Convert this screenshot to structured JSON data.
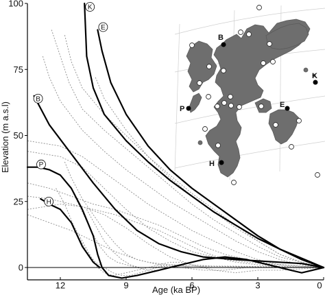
{
  "chart_data": {
    "type": "line",
    "xlabel": "Age (ka BP)",
    "ylabel": "Elevation (m a.s.l)",
    "xlim": [
      13.5,
      0
    ],
    "ylim": [
      -10,
      100
    ],
    "x_ticks": [
      12,
      9,
      6,
      3,
      0
    ],
    "y_ticks": [
      0,
      25,
      50,
      75,
      100
    ],
    "grid": false,
    "series": [
      {
        "name": "K",
        "highlight": true,
        "points": [
          [
            10.9,
            100
          ],
          [
            10.8,
            80
          ],
          [
            10.5,
            68
          ],
          [
            10,
            58
          ],
          [
            9,
            48
          ],
          [
            8,
            40
          ],
          [
            7,
            33
          ],
          [
            6,
            27
          ],
          [
            5,
            21
          ],
          [
            4,
            16
          ],
          [
            3,
            11
          ],
          [
            2,
            7
          ],
          [
            1,
            3.5
          ],
          [
            0,
            0
          ]
        ]
      },
      {
        "name": "E",
        "highlight": true,
        "points": [
          [
            10.3,
            90
          ],
          [
            10.1,
            82
          ],
          [
            9.7,
            70
          ],
          [
            9,
            58
          ],
          [
            8,
            46
          ],
          [
            7,
            37
          ],
          [
            6,
            30
          ],
          [
            5,
            24
          ],
          [
            4,
            18
          ],
          [
            3,
            12
          ],
          [
            2,
            7
          ],
          [
            1,
            3
          ],
          [
            0,
            0
          ]
        ]
      },
      {
        "name": "B",
        "highlight": true,
        "points": [
          [
            13.2,
            65
          ],
          [
            12.5,
            54
          ],
          [
            11.5,
            43
          ],
          [
            10.5,
            32
          ],
          [
            9.5,
            22
          ],
          [
            8.5,
            14
          ],
          [
            7.5,
            9
          ],
          [
            6.5,
            6
          ],
          [
            5.5,
            4
          ],
          [
            4,
            3
          ],
          [
            3,
            2.5
          ],
          [
            2,
            2
          ],
          [
            1,
            1.5
          ],
          [
            0,
            0
          ]
        ]
      },
      {
        "name": "P",
        "highlight": true,
        "points": [
          [
            13.5,
            38
          ],
          [
            13,
            38
          ],
          [
            12.5,
            37
          ],
          [
            12,
            35
          ],
          [
            11.5,
            30
          ],
          [
            11,
            22
          ],
          [
            10.5,
            12
          ],
          [
            10.3,
            5
          ],
          [
            10.1,
            0
          ],
          [
            9.8,
            -3
          ],
          [
            9.2,
            -4
          ],
          [
            8.5,
            -3
          ],
          [
            7.5,
            -1
          ],
          [
            6.5,
            1
          ],
          [
            5.5,
            3
          ],
          [
            4.5,
            4
          ],
          [
            3.5,
            3
          ],
          [
            3,
            2
          ],
          [
            2.5,
            1
          ],
          [
            2,
            0
          ],
          [
            1.5,
            -1
          ],
          [
            1,
            -2
          ],
          [
            0.5,
            -1
          ],
          [
            0,
            0
          ]
        ]
      },
      {
        "name": "H",
        "highlight": true,
        "points": [
          [
            12.9,
            26
          ],
          [
            12.5,
            24
          ],
          [
            12,
            22
          ],
          [
            11.8,
            20
          ],
          [
            11.5,
            17
          ],
          [
            11,
            8
          ],
          [
            10.5,
            2
          ],
          [
            10.2,
            0
          ]
        ]
      },
      {
        "name": "",
        "highlight": false,
        "points": [
          [
            12.4,
            90
          ],
          [
            12,
            80
          ],
          [
            11.6,
            70
          ],
          [
            11,
            60
          ],
          [
            10,
            52
          ],
          [
            9,
            45
          ],
          [
            8,
            38
          ],
          [
            7,
            31
          ],
          [
            6,
            24
          ],
          [
            5,
            18
          ],
          [
            4,
            13
          ],
          [
            3,
            8
          ],
          [
            2,
            4
          ],
          [
            1,
            2
          ],
          [
            0,
            0
          ]
        ]
      },
      {
        "name": "",
        "highlight": false,
        "points": [
          [
            11.8,
            88
          ],
          [
            11.5,
            78
          ],
          [
            11,
            68
          ],
          [
            10,
            58
          ],
          [
            9,
            50
          ],
          [
            8,
            42
          ],
          [
            7,
            35
          ],
          [
            6,
            28
          ],
          [
            5,
            22
          ],
          [
            4,
            16
          ],
          [
            3,
            10
          ],
          [
            2,
            5
          ],
          [
            1,
            2
          ],
          [
            0,
            0
          ]
        ]
      },
      {
        "name": "",
        "highlight": false,
        "points": [
          [
            12.8,
            80
          ],
          [
            12.5,
            72
          ],
          [
            12,
            63
          ],
          [
            11,
            52
          ],
          [
            10,
            44
          ],
          [
            9,
            37
          ],
          [
            8,
            31
          ],
          [
            7,
            25
          ],
          [
            6,
            20
          ],
          [
            5,
            15
          ],
          [
            4,
            10
          ],
          [
            3,
            6
          ],
          [
            2,
            3
          ],
          [
            1,
            1
          ],
          [
            0,
            0
          ]
        ]
      },
      {
        "name": "",
        "highlight": false,
        "points": [
          [
            10.4,
            72
          ],
          [
            10,
            64
          ],
          [
            9,
            52
          ],
          [
            8,
            42
          ],
          [
            7,
            34
          ],
          [
            6,
            27
          ],
          [
            5,
            21
          ],
          [
            4,
            15
          ],
          [
            3,
            10
          ],
          [
            2,
            5
          ],
          [
            1,
            2
          ],
          [
            0,
            0
          ]
        ]
      },
      {
        "name": "",
        "highlight": false,
        "points": [
          [
            13.5,
            48
          ],
          [
            12,
            46
          ],
          [
            11,
            42
          ],
          [
            10,
            36
          ],
          [
            9,
            30
          ],
          [
            8,
            24
          ],
          [
            7,
            19
          ],
          [
            6,
            14
          ],
          [
            5,
            10
          ],
          [
            4,
            6
          ],
          [
            3,
            3
          ],
          [
            2,
            1
          ],
          [
            1,
            0.5
          ],
          [
            0,
            0
          ]
        ]
      },
      {
        "name": "",
        "highlight": false,
        "points": [
          [
            13.5,
            44
          ],
          [
            12,
            42
          ],
          [
            11,
            38
          ],
          [
            10,
            30
          ],
          [
            9,
            22
          ],
          [
            8,
            15
          ],
          [
            7,
            10
          ],
          [
            6,
            6
          ],
          [
            5,
            4
          ],
          [
            4,
            2
          ],
          [
            3,
            1
          ],
          [
            2,
            0.5
          ],
          [
            0,
            0
          ]
        ]
      },
      {
        "name": "",
        "highlight": false,
        "points": [
          [
            13.5,
            32
          ],
          [
            12.5,
            30
          ],
          [
            11.5,
            27
          ],
          [
            10.5,
            24
          ],
          [
            9.5,
            22
          ],
          [
            8.5,
            19
          ],
          [
            7.5,
            16
          ],
          [
            6.5,
            12
          ],
          [
            5.5,
            8
          ],
          [
            4.5,
            5
          ],
          [
            3.5,
            3
          ],
          [
            2.5,
            1.5
          ],
          [
            1,
            0.5
          ],
          [
            0,
            0
          ]
        ]
      },
      {
        "name": "",
        "highlight": false,
        "points": [
          [
            13.5,
            27
          ],
          [
            12.5,
            26
          ],
          [
            11.5,
            24
          ],
          [
            10.5,
            22
          ],
          [
            9.5,
            20
          ],
          [
            8.5,
            17
          ],
          [
            7.5,
            14
          ],
          [
            6.5,
            10
          ],
          [
            5.5,
            6
          ],
          [
            4.5,
            3
          ],
          [
            3.5,
            2
          ],
          [
            2,
            1
          ],
          [
            0,
            0
          ]
        ]
      },
      {
        "name": "",
        "highlight": false,
        "points": [
          [
            13.5,
            22
          ],
          [
            12,
            24
          ],
          [
            11,
            23
          ],
          [
            10,
            20
          ],
          [
            9,
            15
          ],
          [
            8,
            9
          ],
          [
            7,
            4
          ],
          [
            6,
            1
          ],
          [
            5,
            -1
          ],
          [
            4,
            -2
          ],
          [
            3,
            -1
          ],
          [
            2,
            -1
          ],
          [
            1,
            -0.5
          ],
          [
            0,
            0
          ]
        ]
      },
      {
        "name": "",
        "highlight": false,
        "points": [
          [
            13.5,
            20
          ],
          [
            12.5,
            17
          ],
          [
            11.5,
            14
          ],
          [
            10.5,
            10
          ],
          [
            9.5,
            6
          ],
          [
            8.5,
            3
          ],
          [
            7.5,
            1
          ],
          [
            6.5,
            0
          ],
          [
            5.5,
            -1
          ],
          [
            4.5,
            -1
          ],
          [
            3.5,
            0
          ],
          [
            2.5,
            0
          ],
          [
            0,
            0
          ]
        ]
      },
      {
        "name": "",
        "highlight": false,
        "points": [
          [
            11.8,
            40
          ],
          [
            11.5,
            34
          ],
          [
            11,
            26
          ],
          [
            10.5,
            20
          ],
          [
            10,
            14
          ],
          [
            9.5,
            9
          ],
          [
            9,
            5
          ],
          [
            8.5,
            3
          ],
          [
            8,
            2
          ],
          [
            7,
            1
          ],
          [
            6,
            0.5
          ],
          [
            5,
            0
          ],
          [
            3,
            0
          ],
          [
            0,
            0
          ]
        ]
      },
      {
        "name": "",
        "highlight": false,
        "points": [
          [
            12.2,
            30
          ],
          [
            11.8,
            24
          ],
          [
            11.4,
            16
          ],
          [
            11,
            10
          ],
          [
            10.6,
            4
          ],
          [
            10.3,
            0
          ],
          [
            10,
            -2
          ],
          [
            9.6,
            -3
          ],
          [
            9,
            -2
          ],
          [
            8.5,
            -1
          ],
          [
            8,
            0
          ],
          [
            7,
            0.5
          ],
          [
            6,
            0.5
          ],
          [
            5,
            0.5
          ],
          [
            4,
            0.5
          ],
          [
            0,
            0
          ]
        ]
      },
      {
        "name": "",
        "highlight": false,
        "points": [
          [
            11.4,
            28
          ],
          [
            11,
            21
          ],
          [
            10.6,
            14
          ],
          [
            10.2,
            8
          ],
          [
            9.8,
            4
          ],
          [
            9.4,
            2
          ],
          [
            9,
            1
          ],
          [
            8.5,
            0
          ],
          [
            8,
            -1
          ],
          [
            7.5,
            -1
          ],
          [
            7,
            0
          ],
          [
            6.5,
            0.5
          ],
          [
            6,
            0.5
          ],
          [
            0,
            0
          ]
        ]
      },
      {
        "name": "",
        "highlight": false,
        "points": [
          [
            10.8,
            22
          ],
          [
            10.4,
            16
          ],
          [
            10,
            10
          ],
          [
            9.6,
            6
          ],
          [
            9.2,
            3
          ],
          [
            8.8,
            1
          ],
          [
            8.4,
            0
          ],
          [
            8,
            0
          ],
          [
            7.5,
            1
          ],
          [
            7,
            2
          ],
          [
            6.5,
            2
          ],
          [
            6,
            1
          ],
          [
            5,
            0.5
          ],
          [
            0,
            0
          ]
        ]
      },
      {
        "name": "",
        "highlight": false,
        "points": [
          [
            11.2,
            12
          ],
          [
            10.8,
            6
          ],
          [
            10.4,
            2
          ],
          [
            10,
            0
          ],
          [
            9.6,
            -2
          ],
          [
            9.2,
            -3
          ],
          [
            8.8,
            -3
          ],
          [
            8.4,
            -2
          ],
          [
            8,
            -1
          ],
          [
            7.6,
            0
          ],
          [
            7.2,
            1
          ],
          [
            6.8,
            1
          ],
          [
            6.4,
            0.5
          ],
          [
            6,
            0
          ],
          [
            0,
            0
          ]
        ]
      }
    ],
    "map": {
      "labels": [
        "K",
        "B",
        "P",
        "E",
        "H"
      ]
    }
  }
}
